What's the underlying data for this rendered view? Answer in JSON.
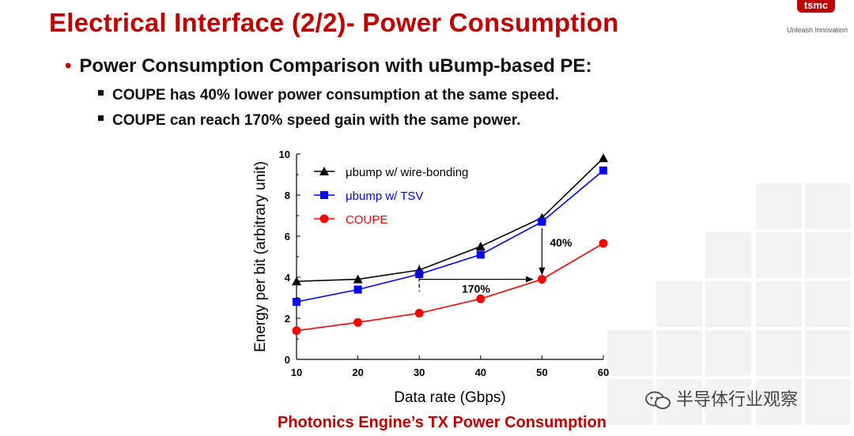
{
  "slide": {
    "title": "Electrical Interface (2/2)- Power Consumption",
    "bullet": "Power Consumption Comparison with uBump-based PE:",
    "sub_bullets": [
      "COUPE has 40% lower power consumption at the same speed.",
      "COUPE can reach 170% speed gain with the same power."
    ],
    "logo_text": "tsmc",
    "logo_tagline": "Unleash Innovation",
    "watermark": "半导体行业观察"
  },
  "colors": {
    "title": "#c00000",
    "wire_bonding": "#000000",
    "tsv": "#0000ff",
    "coupe": "#ff0000"
  },
  "chart_data": {
    "type": "line",
    "title": "Photonics Engine’s TX Power Consumption",
    "xlabel": "Data rate (Gbps)",
    "ylabel": "Energy per bit (arbitrary unit)",
    "x": [
      10,
      20,
      30,
      40,
      50,
      60
    ],
    "xlim": [
      10,
      60
    ],
    "ylim": [
      0,
      10
    ],
    "x_ticks": [
      "10",
      "20",
      "30",
      "40",
      "50",
      "60"
    ],
    "y_ticks": [
      "0",
      "2",
      "4",
      "6",
      "8",
      "10"
    ],
    "grid": false,
    "legend_position": "top-left",
    "series": [
      {
        "name": "μbump w/ wire-bonding",
        "marker": "triangle",
        "color": "#000000",
        "values": [
          3.8,
          3.9,
          4.35,
          5.5,
          6.9,
          9.8
        ]
      },
      {
        "name": "μbump w/ TSV",
        "marker": "square",
        "color": "#0000ff",
        "values": [
          2.8,
          3.4,
          4.15,
          5.1,
          6.7,
          9.2
        ]
      },
      {
        "name": "COUPE",
        "marker": "circle",
        "color": "#ff0000",
        "values": [
          1.4,
          1.8,
          2.25,
          2.95,
          3.9,
          5.65
        ]
      }
    ],
    "annotations": [
      {
        "text": "40%",
        "type": "vertical-arrow",
        "x": 50,
        "y_from": 6.7,
        "y_to": 3.9
      },
      {
        "text": "170%",
        "type": "horizontal-arrow",
        "x_from": 30,
        "x_to": 48.5,
        "y": 3.9
      }
    ]
  }
}
